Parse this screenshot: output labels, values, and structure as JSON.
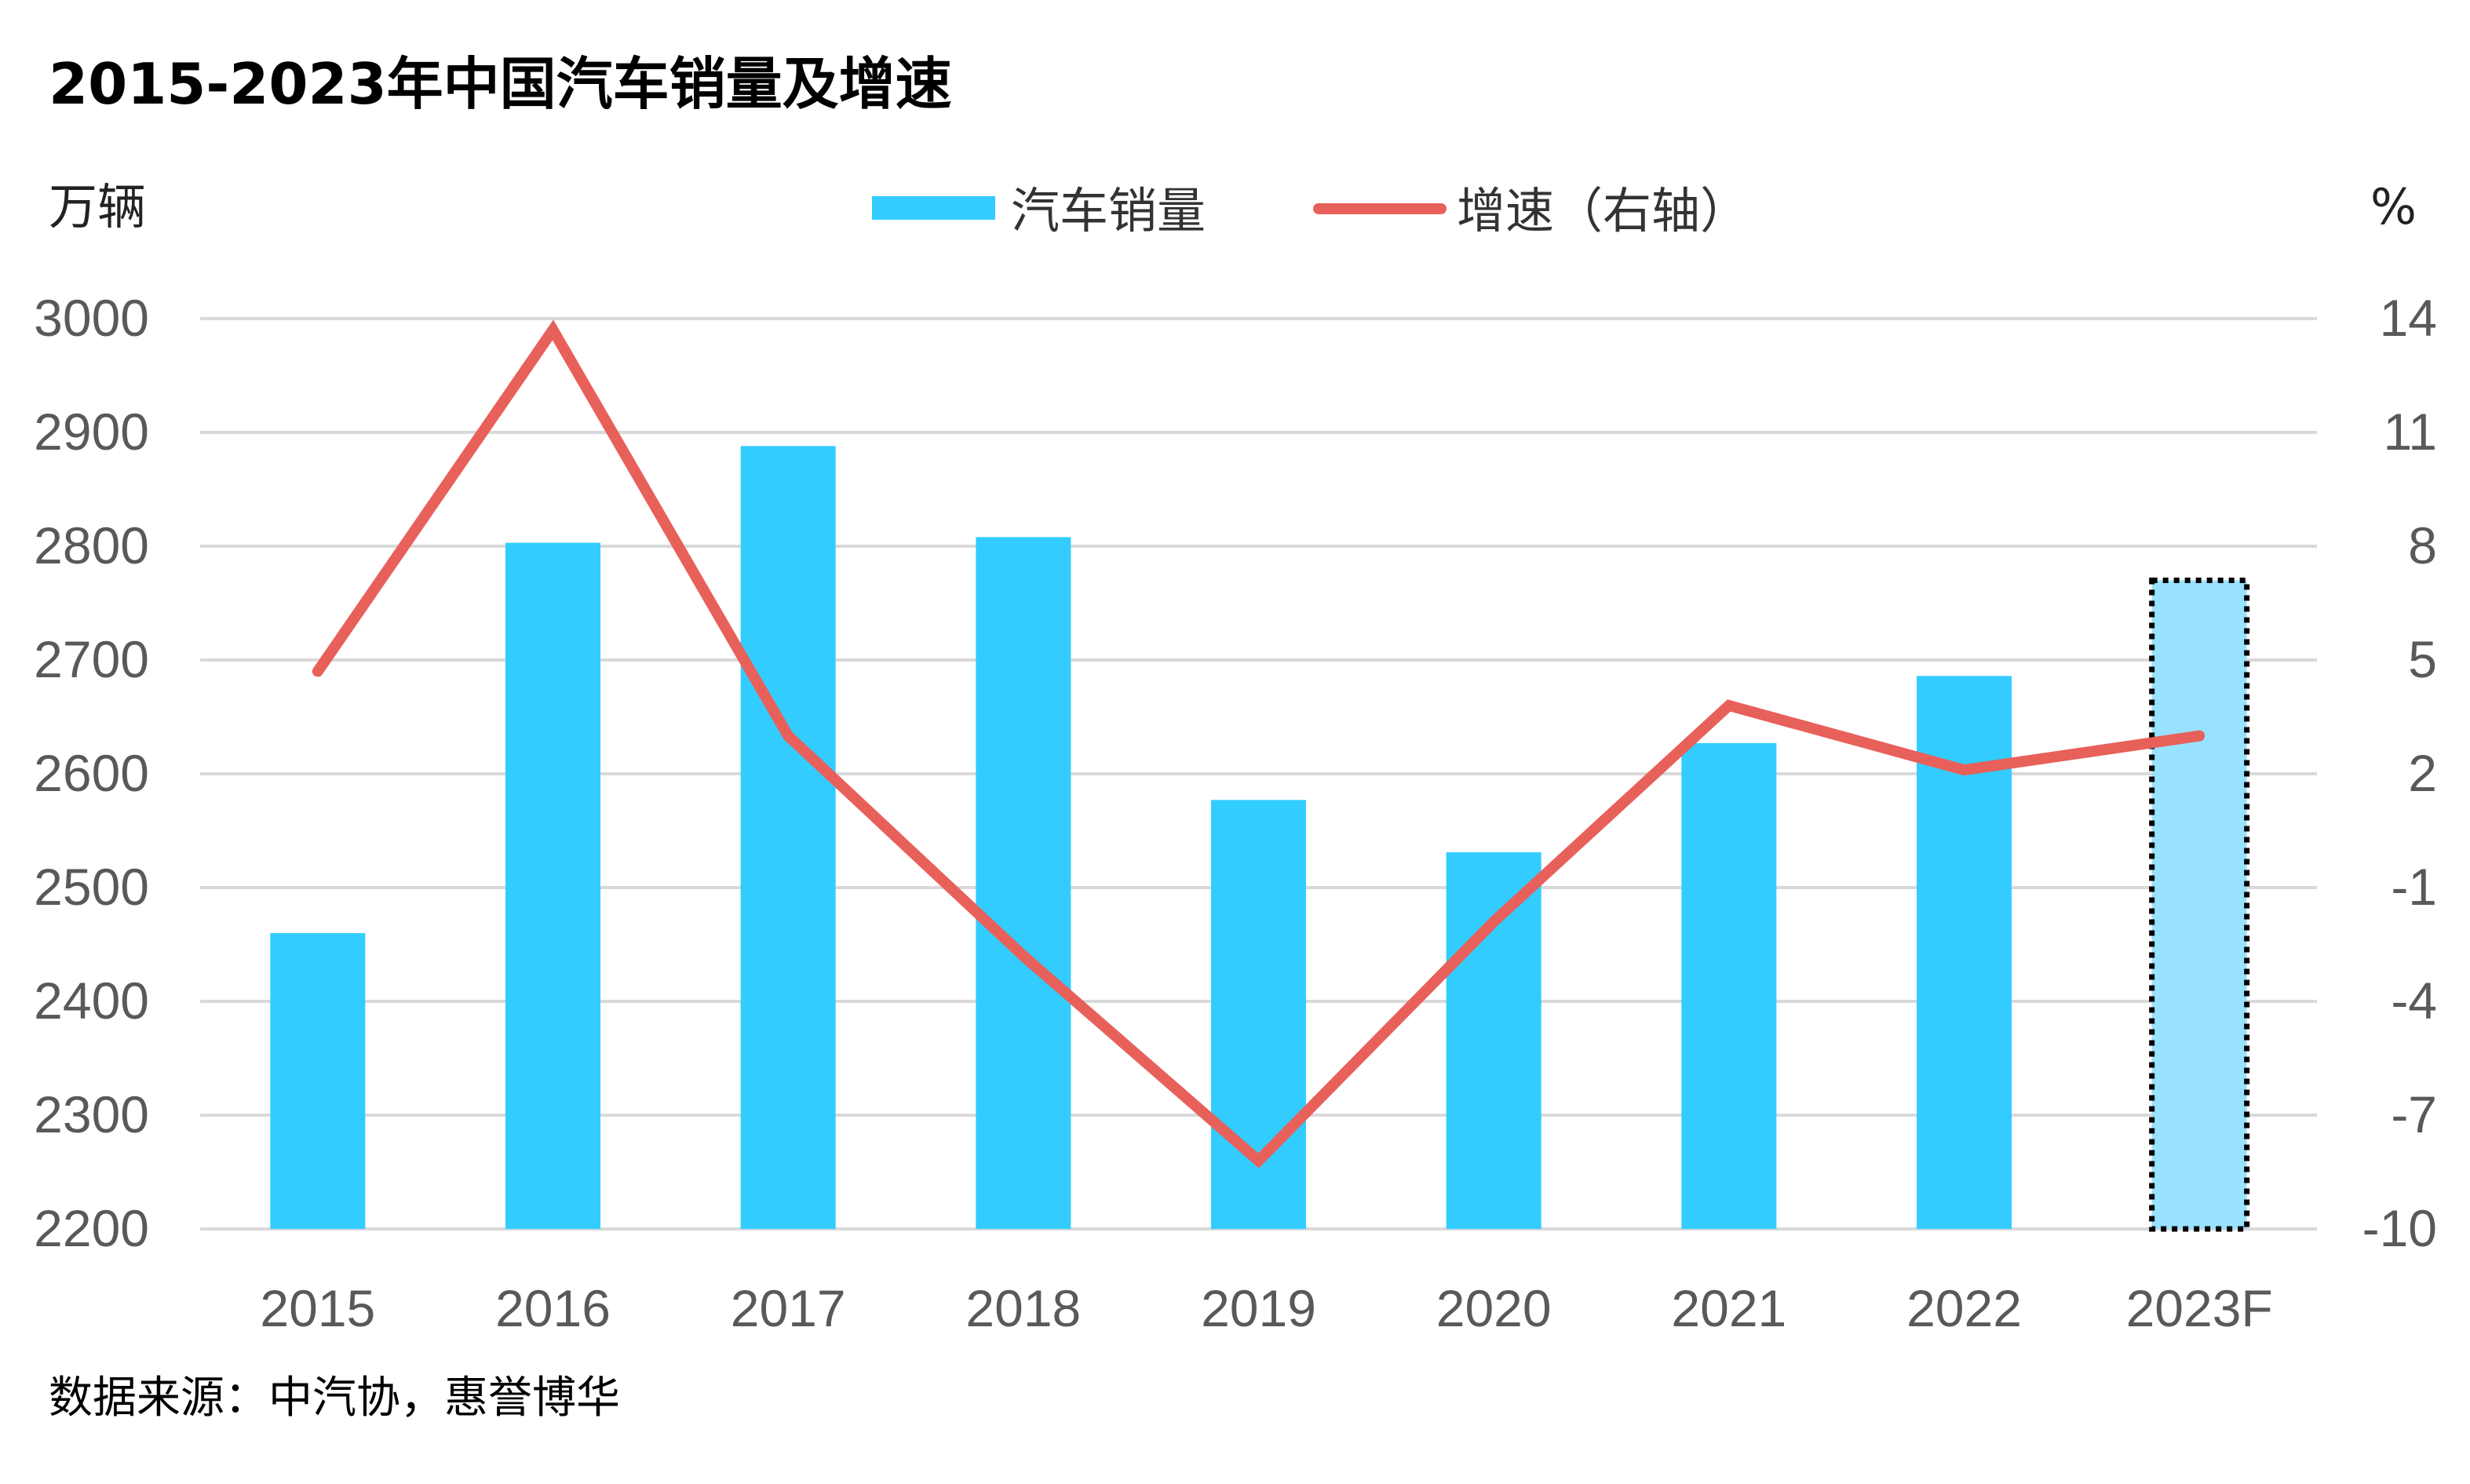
{
  "title": "2015-2023年中国汽车销量及增速",
  "source": "数据来源：中汽协，惠誉博华",
  "chart_data": {
    "type": "bar",
    "title": "2015-2023年中国汽车销量及增速",
    "categories": [
      "2015",
      "2016",
      "2017",
      "2018",
      "2019",
      "2020",
      "2021",
      "2022",
      "2023F"
    ],
    "left_axis": {
      "unit": "万辆",
      "ylim": [
        2200,
        3000
      ],
      "ticks": [
        "3000",
        "2900",
        "2800",
        "2700",
        "2600",
        "2500",
        "2400",
        "2300",
        "2200"
      ]
    },
    "right_axis": {
      "unit": "%",
      "ylim": [
        -10,
        14
      ],
      "ticks": [
        "14",
        "11",
        "8",
        "5",
        "2",
        "-1",
        "-4",
        "-7",
        "-10"
      ]
    },
    "series": [
      {
        "name": "汽车销量",
        "type": "bar",
        "axis": "left",
        "color": "#33CCFF",
        "values": [
          2460,
          2803,
          2888,
          2808,
          2577,
          2531,
          2627,
          2686,
          2770
        ]
      },
      {
        "name": "增速（右轴）",
        "type": "line",
        "axis": "right",
        "color": "#E8605A",
        "values": [
          4.7,
          13.7,
          3.0,
          -2.8,
          -8.2,
          -1.9,
          3.8,
          2.1,
          3.0
        ]
      }
    ],
    "forecast_category": "2023F",
    "forecast_color": "#99E2FF",
    "grid": true,
    "legend": "top-center"
  }
}
